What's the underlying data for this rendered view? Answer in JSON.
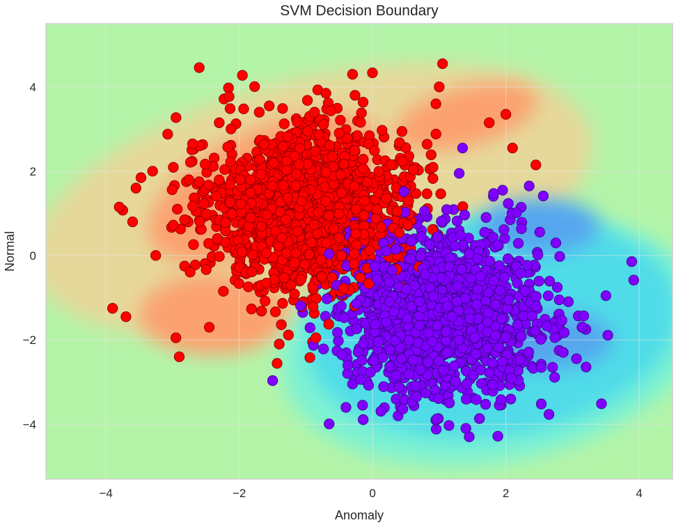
{
  "chart_data": {
    "type": "scatter",
    "title": "SVM Decision Boundary",
    "xlabel": "Anomaly",
    "ylabel": "Normal",
    "xlim": [
      -4.9,
      4.5
    ],
    "ylim": [
      -5.3,
      5.5
    ],
    "x_ticks": [
      -4,
      -2,
      0,
      2,
      4
    ],
    "y_ticks": [
      -4,
      -2,
      0,
      2,
      4
    ],
    "grid": true,
    "legend": "none",
    "background_regions": {
      "colormap": "rainbow",
      "levels": [
        {
          "name": "strong-normal",
          "color": "#4fdbe8"
        },
        {
          "name": "mid-normal",
          "color": "#7df2d3"
        },
        {
          "name": "boundary",
          "color": "#b4f4a9"
        },
        {
          "name": "mid-anomaly",
          "color": "#e6d89a"
        },
        {
          "name": "strong-anomaly",
          "color": "#fca16f"
        },
        {
          "name": "deep-normal",
          "color": "#56a6ef"
        }
      ]
    },
    "series": [
      {
        "class": "anomaly-cluster",
        "color": "#ff0000",
        "edge_color": "#8b0000",
        "center": [
          -1.0,
          1.1
        ],
        "spread": [
          0.75,
          0.95
        ],
        "count": 1500,
        "outliers": [
          [
            -0.3,
            4.3
          ],
          [
            1.05,
            4.55
          ],
          [
            1.0,
            4.0
          ],
          [
            -0.7,
            3.85
          ],
          [
            0.95,
            3.6
          ],
          [
            2.1,
            2.55
          ],
          [
            2.45,
            2.15
          ],
          [
            2.0,
            3.35
          ],
          [
            1.75,
            3.15
          ],
          [
            -3.8,
            1.15
          ],
          [
            -3.55,
            1.6
          ],
          [
            -3.6,
            0.8
          ],
          [
            -3.9,
            -1.25
          ],
          [
            -3.7,
            -1.45
          ],
          [
            -3.3,
            2.0
          ],
          [
            -2.9,
            -2.4
          ],
          [
            -2.95,
            -1.95
          ],
          [
            -2.45,
            -1.7
          ],
          [
            -1.4,
            -2.1
          ],
          [
            -0.9,
            -2.05
          ],
          [
            -0.85,
            -1.95
          ],
          [
            -2.7,
            2.65
          ],
          [
            -2.3,
            3.15
          ],
          [
            -1.7,
            3.4
          ],
          [
            -1.55,
            3.55
          ]
        ]
      },
      {
        "class": "normal-cluster",
        "color": "#8000ff",
        "edge_color": "#3b0a8a",
        "center": [
          1.05,
          -1.35
        ],
        "spread": [
          0.75,
          0.95
        ],
        "count": 1500,
        "outliers": [
          [
            3.5,
            -0.95
          ],
          [
            3.2,
            -1.75
          ],
          [
            2.8,
            -1.05
          ],
          [
            2.75,
            0.3
          ],
          [
            2.35,
            1.65
          ],
          [
            1.95,
            1.55
          ],
          [
            0.95,
            -3.9
          ],
          [
            1.4,
            -4.1
          ],
          [
            1.45,
            -4.3
          ],
          [
            1.9,
            -3.55
          ],
          [
            -0.4,
            -3.6
          ],
          [
            -0.15,
            -3.55
          ],
          [
            2.8,
            -2.25
          ],
          [
            2.7,
            -2.65
          ],
          [
            1.35,
            2.55
          ],
          [
            1.3,
            1.95
          ]
        ]
      }
    ],
    "seed": 1337
  }
}
